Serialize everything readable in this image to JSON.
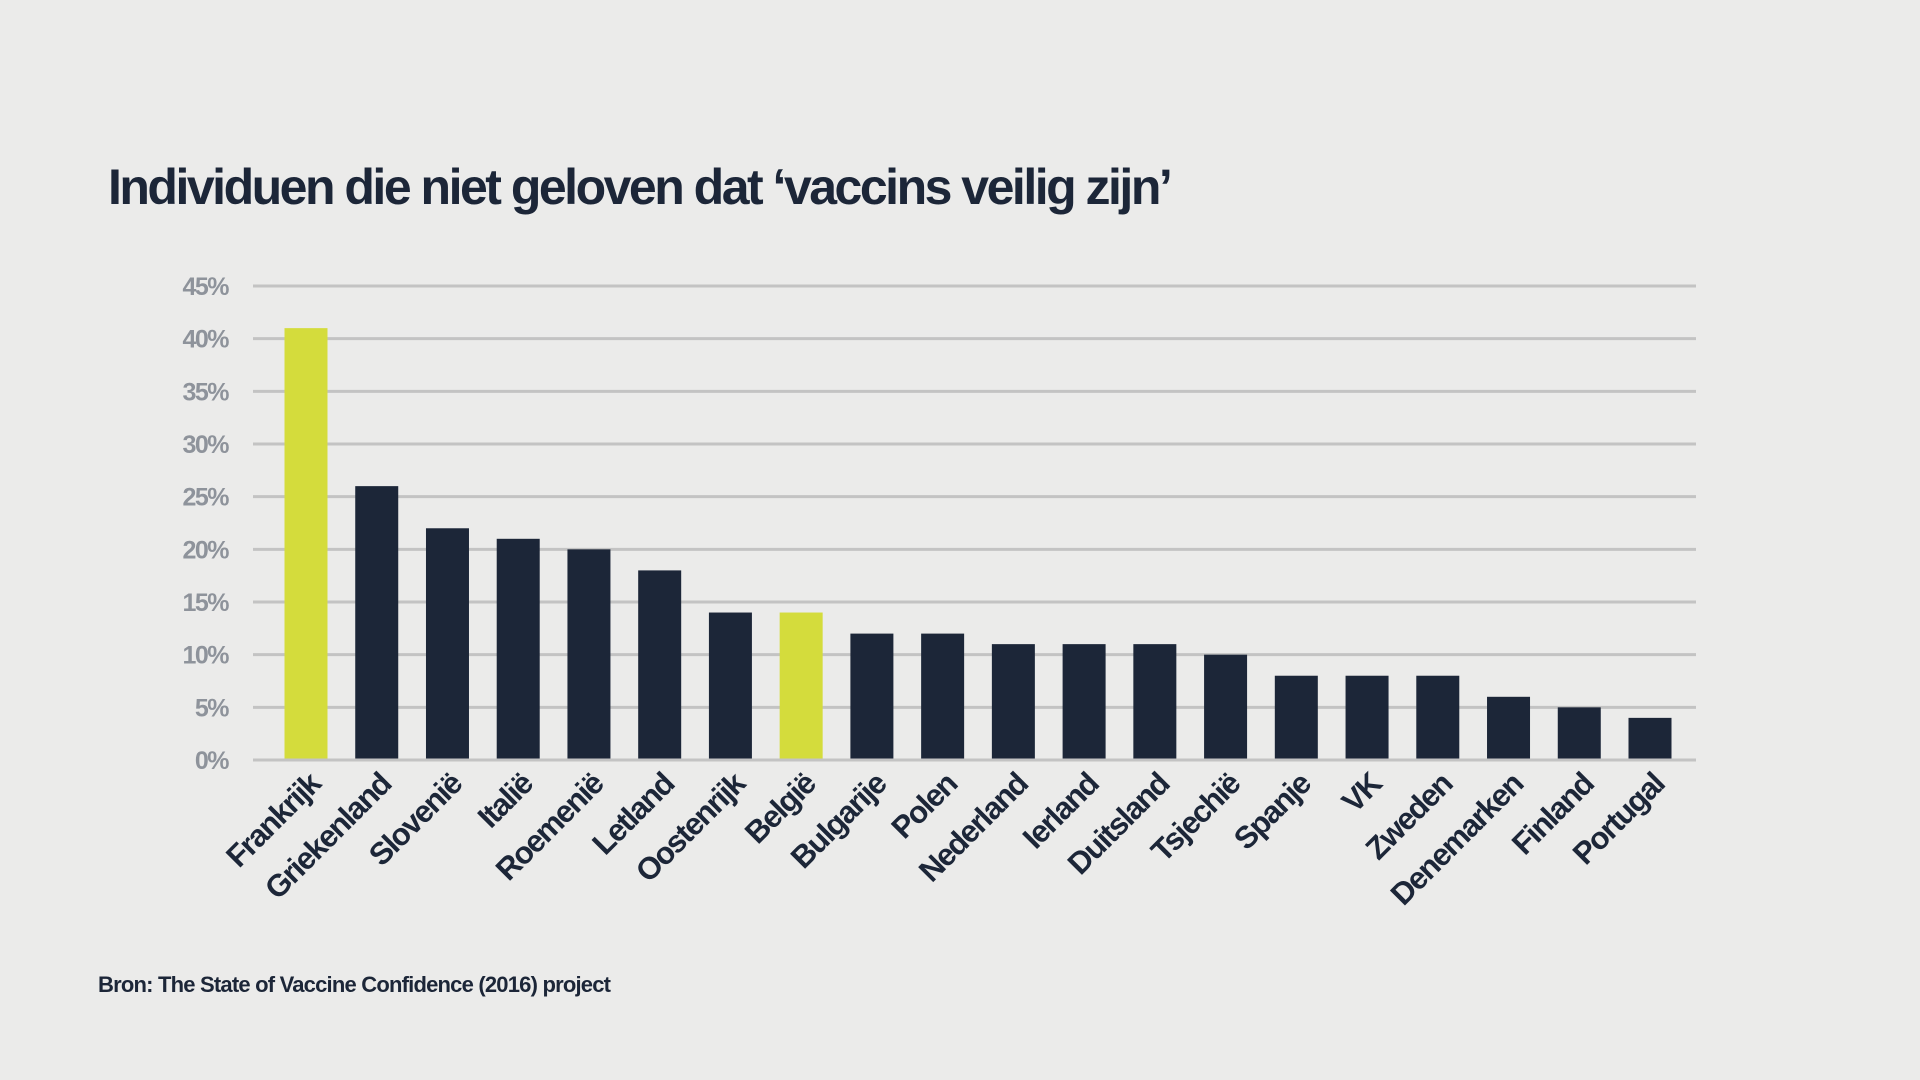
{
  "title": {
    "before": "Individuen die ",
    "highlight": "niet",
    "after": " geloven dat ‘vaccins veilig zijn’"
  },
  "source": "Bron: The State of Vaccine Confidence (2016) project",
  "colors": {
    "default": "#1c2638",
    "highlight": "#d4dc3c",
    "grid": "#c3c3c3",
    "tick": "#8e939b"
  },
  "chart_data": {
    "type": "bar",
    "title": "Individuen die niet geloven dat ‘vaccins veilig zijn’",
    "xlabel": "",
    "ylabel": "",
    "ylim": [
      0,
      45
    ],
    "yticks": [
      0,
      5,
      10,
      15,
      20,
      25,
      30,
      35,
      40,
      45
    ],
    "ytick_labels": [
      "0%",
      "5%",
      "10%",
      "15%",
      "20%",
      "25%",
      "30%",
      "35%",
      "40%",
      "45%"
    ],
    "grid": true,
    "categories": [
      "Frankrijk",
      "Griekenland",
      "Slovenië",
      "Italië",
      "Roemenië",
      "Letland",
      "Oostenrijk",
      "België",
      "Bulgarije",
      "Polen",
      "Nederland",
      "Ierland",
      "Duitsland",
      "Tsjechië",
      "Spanje",
      "VK",
      "Zweden",
      "Denemarken",
      "Finland",
      "Portugal"
    ],
    "values": [
      41,
      26,
      22,
      21,
      20,
      18,
      14,
      14,
      12,
      12,
      11,
      11,
      11,
      10,
      8,
      8,
      8,
      6,
      5,
      4
    ],
    "highlighted": [
      "Frankrijk",
      "België"
    ]
  }
}
